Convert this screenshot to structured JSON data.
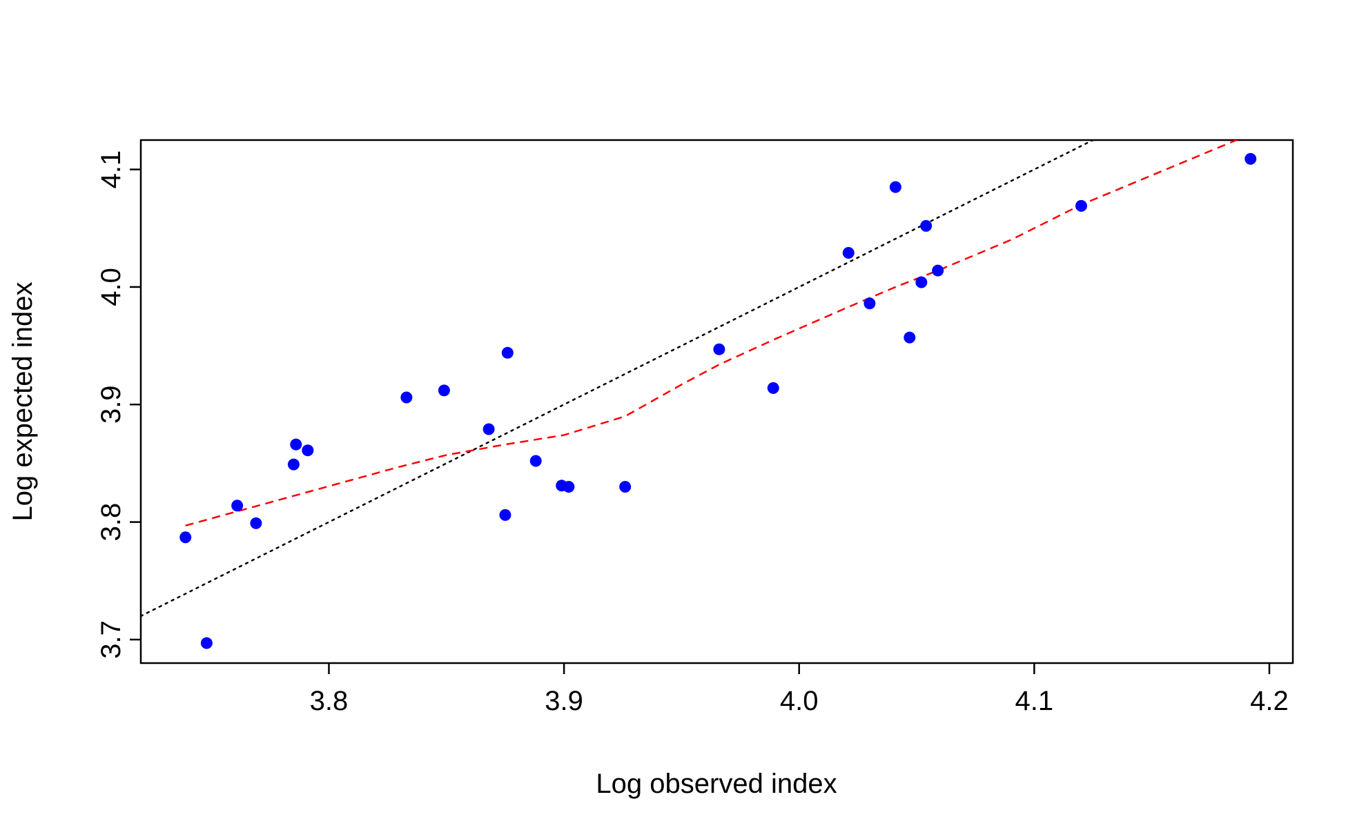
{
  "chart_data": {
    "type": "scatter",
    "xlabel": "Log observed index",
    "ylabel": "Log expected index",
    "xlim": [
      3.72,
      4.21
    ],
    "ylim": [
      3.68,
      4.125
    ],
    "x_ticks": [
      3.8,
      3.9,
      4.0,
      4.1,
      4.2
    ],
    "x_tick_labels": [
      "3.8",
      "3.9",
      "4.0",
      "4.1",
      "4.2"
    ],
    "y_ticks": [
      3.7,
      3.8,
      3.9,
      4.0,
      4.1
    ],
    "y_tick_labels": [
      "3.7",
      "3.8",
      "3.9",
      "4.0",
      "4.1"
    ],
    "grid": false,
    "legend": "none",
    "colors": {
      "points": "#0000ff",
      "smooth_line": "#ff0000",
      "identity_line": "#000000",
      "axes": "#000000"
    },
    "points": [
      {
        "x": 3.739,
        "y": 3.787
      },
      {
        "x": 3.748,
        "y": 3.697
      },
      {
        "x": 3.761,
        "y": 3.814
      },
      {
        "x": 3.769,
        "y": 3.799
      },
      {
        "x": 3.785,
        "y": 3.849
      },
      {
        "x": 3.786,
        "y": 3.866
      },
      {
        "x": 3.791,
        "y": 3.861
      },
      {
        "x": 3.833,
        "y": 3.906
      },
      {
        "x": 3.849,
        "y": 3.912
      },
      {
        "x": 3.868,
        "y": 3.879
      },
      {
        "x": 3.875,
        "y": 3.806
      },
      {
        "x": 3.876,
        "y": 3.944
      },
      {
        "x": 3.888,
        "y": 3.852
      },
      {
        "x": 3.899,
        "y": 3.831
      },
      {
        "x": 3.902,
        "y": 3.83
      },
      {
        "x": 3.926,
        "y": 3.83
      },
      {
        "x": 3.966,
        "y": 3.947
      },
      {
        "x": 3.989,
        "y": 3.914
      },
      {
        "x": 4.021,
        "y": 4.029
      },
      {
        "x": 4.03,
        "y": 3.986
      },
      {
        "x": 4.041,
        "y": 4.085
      },
      {
        "x": 4.047,
        "y": 3.957
      },
      {
        "x": 4.052,
        "y": 4.004
      },
      {
        "x": 4.054,
        "y": 4.052
      },
      {
        "x": 4.059,
        "y": 4.014
      },
      {
        "x": 4.12,
        "y": 4.069
      },
      {
        "x": 4.192,
        "y": 4.109
      }
    ],
    "smooth_line": [
      {
        "x": 3.739,
        "y": 3.797
      },
      {
        "x": 3.79,
        "y": 3.825
      },
      {
        "x": 3.83,
        "y": 3.847
      },
      {
        "x": 3.85,
        "y": 3.857
      },
      {
        "x": 3.875,
        "y": 3.866
      },
      {
        "x": 3.9,
        "y": 3.874
      },
      {
        "x": 3.926,
        "y": 3.89
      },
      {
        "x": 3.95,
        "y": 3.917
      },
      {
        "x": 3.966,
        "y": 3.934
      },
      {
        "x": 3.989,
        "y": 3.955
      },
      {
        "x": 4.021,
        "y": 3.983
      },
      {
        "x": 4.041,
        "y": 4.0
      },
      {
        "x": 4.059,
        "y": 4.014
      },
      {
        "x": 4.09,
        "y": 4.04
      },
      {
        "x": 4.12,
        "y": 4.07
      },
      {
        "x": 4.192,
        "y": 4.13
      }
    ],
    "identity_line": {
      "from": 3.72,
      "to": 4.21
    }
  }
}
